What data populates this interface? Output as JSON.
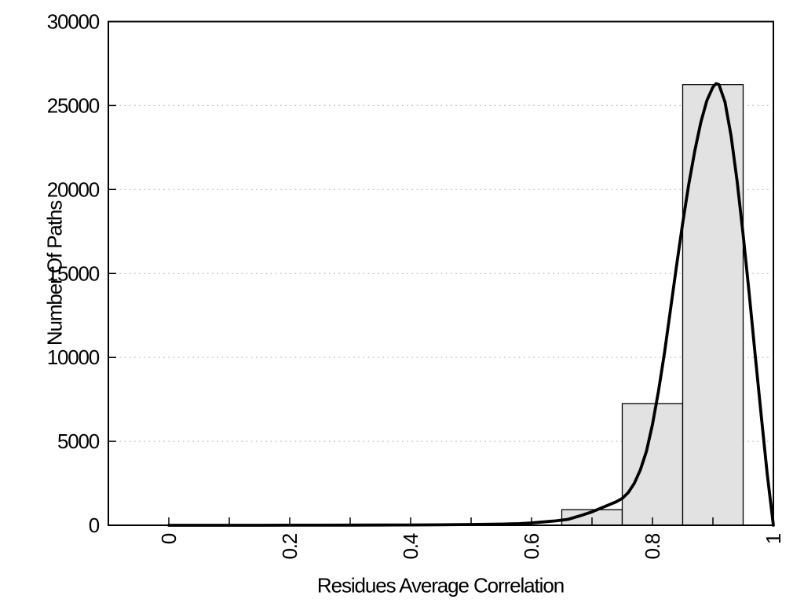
{
  "chart_data": {
    "type": "bar",
    "subtype": "histogram_with_density_curve",
    "title": "",
    "xlabel": "Residues Average Correlation",
    "ylabel": "Number Of Paths",
    "xlim": [
      -0.1,
      1.0
    ],
    "ylim": [
      0,
      30000
    ],
    "grid": "horizontal-dotted",
    "legend": "none",
    "x_minor_tick_step": 0.1,
    "x_labeled_ticks": [
      {
        "value": 0,
        "label": "0"
      },
      {
        "value": 0.2,
        "label": "0.2"
      },
      {
        "value": 0.4,
        "label": "0.4"
      },
      {
        "value": 0.6,
        "label": "0.6"
      },
      {
        "value": 0.8,
        "label": "0.8"
      },
      {
        "value": 1,
        "label": "1"
      }
    ],
    "y_ticks": [
      {
        "value": 0,
        "label": "0"
      },
      {
        "value": 5000,
        "label": "5000"
      },
      {
        "value": 10000,
        "label": "10000"
      },
      {
        "value": 15000,
        "label": "15000"
      },
      {
        "value": 20000,
        "label": "20000"
      },
      {
        "value": 25000,
        "label": "25000"
      },
      {
        "value": 30000,
        "label": "30000"
      }
    ],
    "y_gridlines": [
      5000,
      10000,
      15000,
      20000,
      25000
    ],
    "bars": [
      {
        "x0": 0.65,
        "x1": 0.75,
        "value": 930
      },
      {
        "x0": 0.75,
        "x1": 0.85,
        "value": 7250
      },
      {
        "x0": 0.85,
        "x1": 0.95,
        "value": 26250
      }
    ],
    "curve_name": "density-fit-curve",
    "curve_points": [
      [
        0,
        0
      ],
      [
        0.05,
        0
      ],
      [
        0.1,
        0
      ],
      [
        0.15,
        0
      ],
      [
        0.2,
        3
      ],
      [
        0.25,
        5
      ],
      [
        0.3,
        8
      ],
      [
        0.35,
        12
      ],
      [
        0.4,
        18
      ],
      [
        0.45,
        28
      ],
      [
        0.5,
        45
      ],
      [
        0.55,
        70
      ],
      [
        0.58,
        100
      ],
      [
        0.6,
        140
      ],
      [
        0.62,
        200
      ],
      [
        0.64,
        260
      ],
      [
        0.66,
        350
      ],
      [
        0.68,
        560
      ],
      [
        0.7,
        800
      ],
      [
        0.72,
        1100
      ],
      [
        0.74,
        1400
      ],
      [
        0.75,
        1600
      ],
      [
        0.76,
        1950
      ],
      [
        0.77,
        2500
      ],
      [
        0.78,
        3300
      ],
      [
        0.79,
        4400
      ],
      [
        0.8,
        6000
      ],
      [
        0.81,
        8000
      ],
      [
        0.82,
        10300
      ],
      [
        0.83,
        12900
      ],
      [
        0.84,
        15500
      ],
      [
        0.85,
        18000
      ],
      [
        0.86,
        20300
      ],
      [
        0.87,
        22300
      ],
      [
        0.88,
        24000
      ],
      [
        0.89,
        25300
      ],
      [
        0.9,
        26100
      ],
      [
        0.905,
        26300
      ],
      [
        0.91,
        26250
      ],
      [
        0.92,
        25200
      ],
      [
        0.93,
        23200
      ],
      [
        0.94,
        20500
      ],
      [
        0.95,
        17300
      ],
      [
        0.96,
        13800
      ],
      [
        0.97,
        10100
      ],
      [
        0.98,
        6500
      ],
      [
        0.99,
        3000
      ],
      [
        0.997,
        900
      ],
      [
        1,
        0
      ]
    ],
    "colors": {
      "background": "#ffffff",
      "bar_fill": "#e2e2e2",
      "bar_border": "#000000",
      "curve": "#000000",
      "axis": "#000000",
      "tick": "#000000",
      "grid": "#b8b8b8",
      "text": "#000000"
    }
  }
}
